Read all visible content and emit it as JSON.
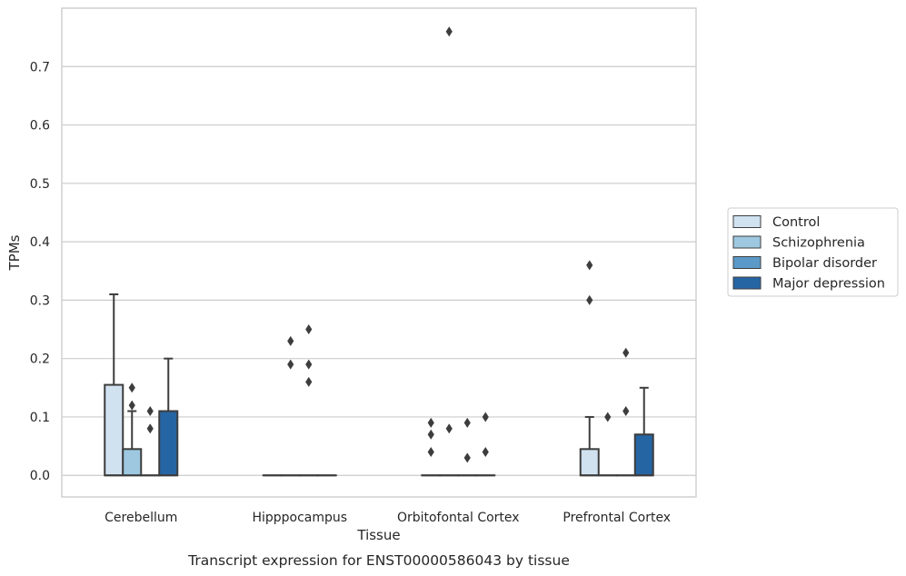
{
  "chart_data": {
    "type": "box",
    "title": "",
    "caption": "Transcript expression for ENST00000586043 by tissue",
    "xlabel": "Tissue",
    "ylabel": "TPMs",
    "ylim": [
      -0.037,
      0.8
    ],
    "yticks": [
      "0.0",
      "0.1",
      "0.2",
      "0.3",
      "0.4",
      "0.5",
      "0.6",
      "0.7"
    ],
    "grid": "horizontal",
    "legend_position": "right",
    "categories": [
      "Cerebellum",
      "Hipppocampus",
      "Orbitofontal Cortex",
      "Prefrontal Cortex"
    ],
    "series": [
      {
        "name": "Control",
        "color": "#d0e1f0",
        "boxes": [
          {
            "q1": 0,
            "median": 0,
            "q3": 0.155,
            "whisker_low": 0,
            "whisker_high": 0.31,
            "outliers": []
          },
          {
            "q1": 0,
            "median": 0,
            "q3": 0,
            "whisker_low": 0,
            "whisker_high": 0,
            "outliers": []
          },
          {
            "q1": 0,
            "median": 0,
            "q3": 0,
            "whisker_low": 0,
            "whisker_high": 0,
            "outliers": [
              0.09,
              0.07,
              0.04
            ]
          },
          {
            "q1": 0,
            "median": 0,
            "q3": 0.045,
            "whisker_low": 0,
            "whisker_high": 0.1,
            "outliers": [
              0.36,
              0.3
            ]
          }
        ]
      },
      {
        "name": "Schizophrenia",
        "color": "#9dc8e0",
        "boxes": [
          {
            "q1": 0,
            "median": 0,
            "q3": 0.045,
            "whisker_low": 0,
            "whisker_high": 0.11,
            "outliers": [
              0.15,
              0.12
            ]
          },
          {
            "q1": 0,
            "median": 0,
            "q3": 0,
            "whisker_low": 0,
            "whisker_high": 0,
            "outliers": [
              0.23,
              0.19
            ]
          },
          {
            "q1": 0,
            "median": 0,
            "q3": 0,
            "whisker_low": 0,
            "whisker_high": 0,
            "outliers": [
              0.76,
              0.08
            ]
          },
          {
            "q1": 0,
            "median": 0,
            "q3": 0,
            "whisker_low": 0,
            "whisker_high": 0,
            "outliers": [
              0.1
            ]
          }
        ]
      },
      {
        "name": "Bipolar disorder",
        "color": "#5b9ac8",
        "boxes": [
          {
            "q1": 0,
            "median": 0,
            "q3": 0,
            "whisker_low": 0,
            "whisker_high": 0,
            "outliers": [
              0.11,
              0.08
            ]
          },
          {
            "q1": 0,
            "median": 0,
            "q3": 0,
            "whisker_low": 0,
            "whisker_high": 0,
            "outliers": [
              0.25,
              0.19,
              0.16
            ]
          },
          {
            "q1": 0,
            "median": 0,
            "q3": 0,
            "whisker_low": 0,
            "whisker_high": 0,
            "outliers": [
              0.09,
              0.03
            ]
          },
          {
            "q1": 0,
            "median": 0,
            "q3": 0,
            "whisker_low": 0,
            "whisker_high": 0,
            "outliers": [
              0.21,
              0.11
            ]
          }
        ]
      },
      {
        "name": "Major depression",
        "color": "#2665a3",
        "boxes": [
          {
            "q1": 0,
            "median": 0,
            "q3": 0.11,
            "whisker_low": 0,
            "whisker_high": 0.2,
            "outliers": []
          },
          {
            "q1": 0,
            "median": 0,
            "q3": 0,
            "whisker_low": 0,
            "whisker_high": 0,
            "outliers": []
          },
          {
            "q1": 0,
            "median": 0,
            "q3": 0,
            "whisker_low": 0,
            "whisker_high": 0,
            "outliers": [
              0.1,
              0.04
            ]
          },
          {
            "q1": 0,
            "median": 0,
            "q3": 0.07,
            "whisker_low": 0,
            "whisker_high": 0.15,
            "outliers": []
          }
        ]
      }
    ]
  }
}
